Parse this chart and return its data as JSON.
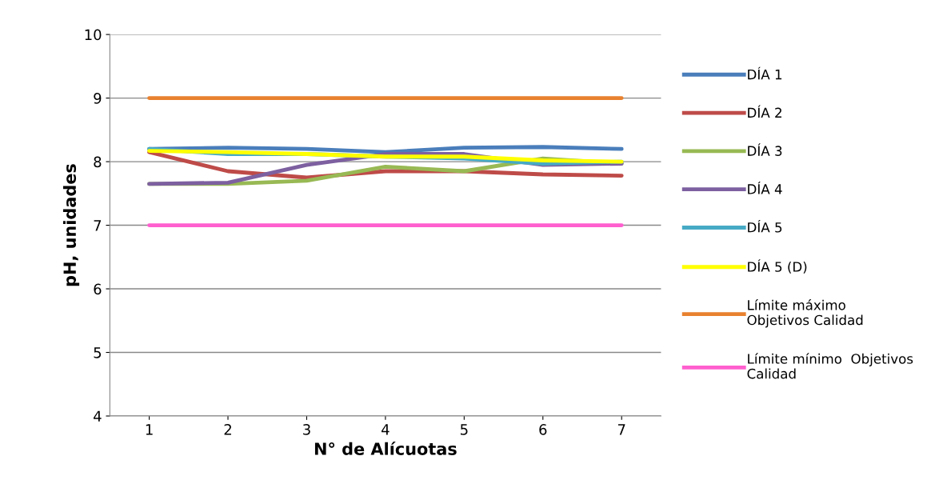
{
  "chart_data": {
    "type": "line",
    "xlabel": "N° de Alícuotas",
    "ylabel": "pH, unidades",
    "x": [
      1,
      2,
      3,
      4,
      5,
      6,
      7
    ],
    "xlim": [
      0.5,
      7.5
    ],
    "xticks": [
      1,
      2,
      3,
      4,
      5,
      6,
      7
    ],
    "ylim": [
      4,
      10
    ],
    "yticks": [
      4,
      5,
      6,
      7,
      8,
      9,
      10
    ],
    "grid": "y",
    "legend": "right",
    "line_style": "solid",
    "marker": "none",
    "series": [
      {
        "name": "DÍA 1",
        "color": "#4a7ebb",
        "values": [
          8.2,
          8.22,
          8.2,
          8.15,
          8.22,
          8.23,
          8.2
        ]
      },
      {
        "name": "DÍA 2",
        "color": "#be4b48",
        "values": [
          8.15,
          7.85,
          7.75,
          7.85,
          7.85,
          7.8,
          7.78
        ]
      },
      {
        "name": "DÍA 3",
        "color": "#98b954",
        "values": [
          7.65,
          7.65,
          7.7,
          7.92,
          7.85,
          8.05,
          7.97
        ]
      },
      {
        "name": "DÍA 4",
        "color": "#7d60a0",
        "values": [
          7.65,
          7.67,
          7.95,
          8.12,
          8.12,
          7.95,
          7.97
        ]
      },
      {
        "name": "DÍA 5",
        "color": "#46aac5",
        "values": [
          8.2,
          8.12,
          8.12,
          8.08,
          8.05,
          7.97,
          8.0
        ]
      },
      {
        "name": "DÍA 5 (D)",
        "color": "#ffff00",
        "values": [
          8.17,
          8.15,
          8.12,
          8.08,
          8.08,
          8.02,
          8.0
        ]
      },
      {
        "name": "Límite máximo\nObjetivos Calidad",
        "color": "#e8812f",
        "values": [
          9,
          9,
          9,
          9,
          9,
          9,
          9
        ]
      },
      {
        "name": "Límite mínimo  Objetivos\nCalidad",
        "color": "#ff5fcf",
        "values": [
          7,
          7,
          7,
          7,
          7,
          7,
          7
        ]
      }
    ]
  }
}
